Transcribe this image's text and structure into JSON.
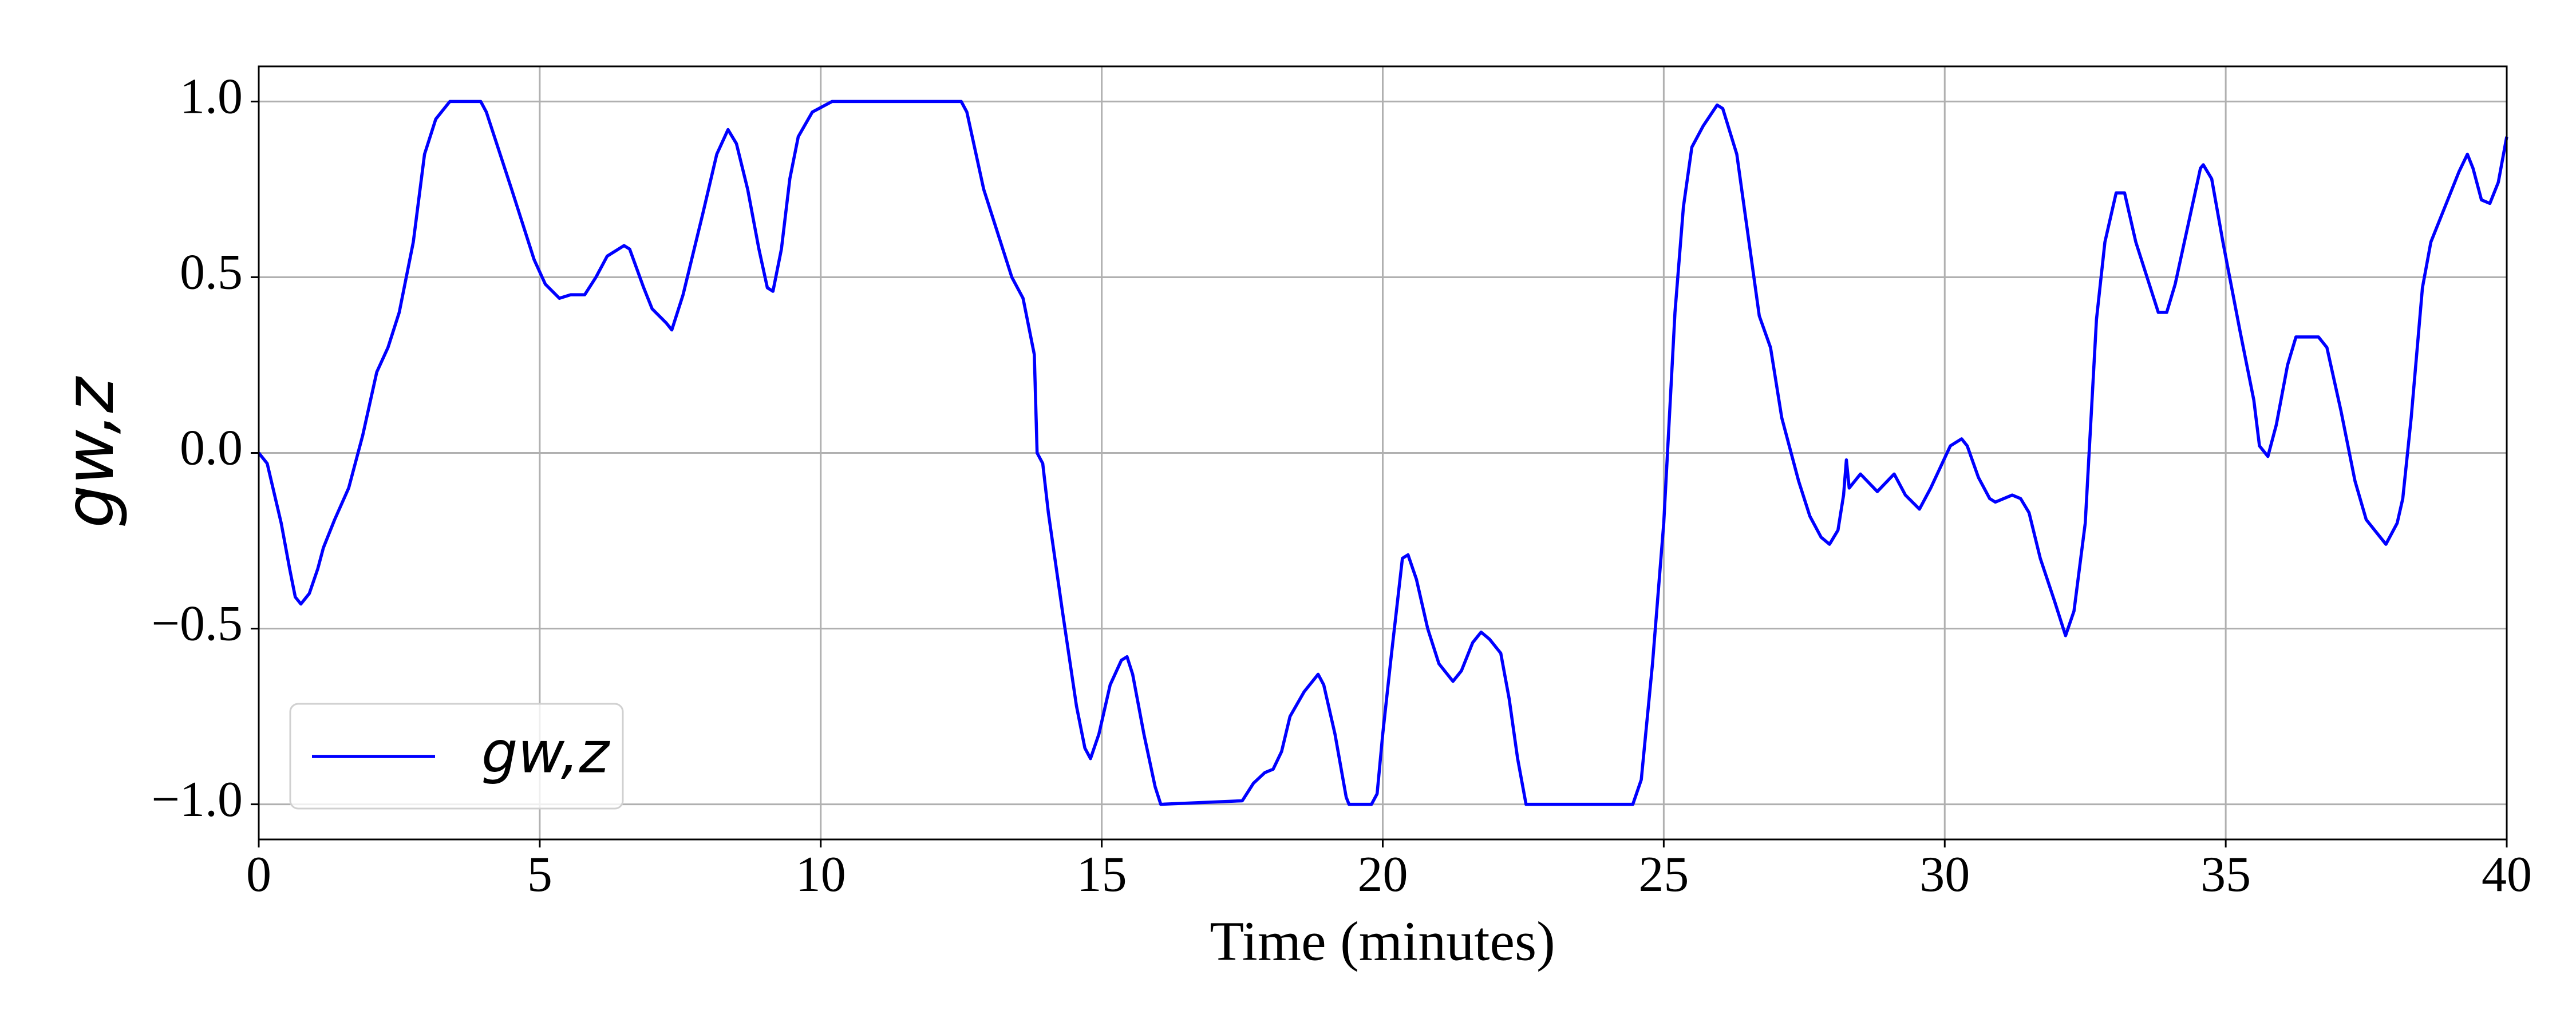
{
  "chart_data": {
    "type": "line",
    "x_label": "Time (minutes)",
    "y_label": "gw,z",
    "xlim": [
      0,
      40
    ],
    "ylim": [
      -1.1,
      1.1
    ],
    "xticks": [
      0,
      5,
      10,
      15,
      20,
      25,
      30,
      35,
      40
    ],
    "yticks": [
      {
        "value": -1.0,
        "label": "−1.0"
      },
      {
        "value": -0.5,
        "label": "−0.5"
      },
      {
        "value": 0.0,
        "label": "0.0"
      },
      0.5,
      {
        "value": 1.0,
        "label": "1.0"
      }
    ],
    "grid": true,
    "legend": "lower left",
    "x": [
      0,
      0.15,
      0.4,
      0.55,
      0.65,
      0.75,
      0.9,
      1.05,
      1.15,
      1.35,
      1.6,
      1.85,
      2.1,
      2.3,
      2.5,
      2.75,
      2.95,
      3.15,
      3.4,
      3.95,
      4.05,
      4.5,
      4.9,
      5.1,
      5.35,
      5.55,
      5.8,
      6.0,
      6.2,
      6.5,
      6.6,
      6.85,
      7.0,
      7.25,
      7.35,
      7.55,
      7.9,
      8.15,
      8.35,
      8.5,
      8.7,
      8.9,
      9.05,
      9.15,
      9.3,
      9.45,
      9.6,
      9.85,
      10.2,
      12.5,
      12.6,
      12.9,
      13.2,
      13.4,
      13.6,
      13.8,
      13.85,
      13.95,
      14.05,
      14.3,
      14.55,
      14.7,
      14.8,
      14.95,
      15.15,
      15.35,
      15.45,
      15.55,
      15.75,
      15.95,
      16.05,
      17.5,
      17.7,
      17.9,
      18.05,
      18.2,
      18.35,
      18.6,
      18.85,
      18.95,
      19.15,
      19.35,
      19.4,
      19.8,
      19.9,
      20.0,
      20.15,
      20.35,
      20.45,
      20.6,
      20.8,
      21.0,
      21.25,
      21.4,
      21.6,
      21.75,
      21.9,
      22.1,
      22.25,
      22.4,
      22.55,
      24.45,
      24.6,
      24.8,
      25.0,
      25.2,
      25.35,
      25.5,
      25.7,
      25.95,
      26.05,
      26.3,
      26.7,
      26.9,
      27.1,
      27.4,
      27.6,
      27.8,
      27.95,
      28.1,
      28.2,
      28.25,
      28.3,
      28.5,
      28.8,
      29.1,
      29.3,
      29.55,
      29.75,
      30.1,
      30.3,
      30.4,
      30.6,
      30.8,
      30.9,
      31.2,
      31.35,
      31.5,
      31.7,
      31.95,
      32.15,
      32.3,
      32.5,
      32.7,
      32.85,
      33.05,
      33.2,
      33.4,
      33.7,
      33.8,
      33.95,
      34.1,
      34.55,
      34.6,
      34.75,
      34.95,
      35.25,
      35.5,
      35.6,
      35.75,
      35.9,
      36.1,
      36.25,
      36.65,
      36.8,
      37.05,
      37.3,
      37.5,
      37.8,
      37.85,
      38.05,
      38.15,
      38.3,
      38.5,
      38.65,
      38.95,
      39.15,
      39.3,
      39.4,
      39.55,
      39.7,
      39.85,
      40
    ],
    "series": [
      {
        "name": "gw,z",
        "color": "#0000ff",
        "values": [
          0,
          -0.03,
          -0.2,
          -0.33,
          -0.41,
          -0.43,
          -0.4,
          -0.33,
          -0.27,
          -0.19,
          -0.1,
          0.05,
          0.23,
          0.3,
          0.4,
          0.6,
          0.85,
          0.95,
          1.0,
          1.0,
          0.97,
          0.75,
          0.55,
          0.48,
          0.44,
          0.45,
          0.45,
          0.5,
          0.56,
          0.59,
          0.58,
          0.47,
          0.41,
          0.37,
          0.35,
          0.45,
          0.68,
          0.85,
          0.92,
          0.88,
          0.75,
          0.58,
          0.47,
          0.46,
          0.58,
          0.78,
          0.9,
          0.97,
          1.0,
          1.0,
          0.97,
          0.75,
          0.6,
          0.5,
          0.44,
          0.28,
          0.0,
          -0.03,
          -0.17,
          -0.45,
          -0.72,
          -0.84,
          -0.87,
          -0.8,
          -0.66,
          -0.59,
          -0.58,
          -0.63,
          -0.8,
          -0.95,
          -1.0,
          -0.99,
          -0.94,
          -0.91,
          -0.9,
          -0.85,
          -0.75,
          -0.68,
          -0.63,
          -0.66,
          -0.8,
          -0.98,
          -1.0,
          -1.0,
          -0.97,
          -0.8,
          -0.58,
          -0.3,
          -0.29,
          -0.36,
          -0.5,
          -0.6,
          -0.65,
          -0.62,
          -0.54,
          -0.51,
          -0.53,
          -0.57,
          -0.7,
          -0.87,
          -1.0,
          -1.0,
          -0.93,
          -0.6,
          -0.2,
          0.4,
          0.7,
          0.87,
          0.93,
          0.99,
          0.98,
          0.85,
          0.39,
          0.3,
          0.1,
          -0.08,
          -0.18,
          -0.24,
          -0.26,
          -0.22,
          -0.12,
          -0.02,
          -0.1,
          -0.06,
          -0.11,
          -0.06,
          -0.12,
          -0.16,
          -0.1,
          0.02,
          0.04,
          0.02,
          -0.07,
          -0.13,
          -0.14,
          -0.12,
          -0.13,
          -0.17,
          -0.3,
          -0.42,
          -0.52,
          -0.45,
          -0.2,
          0.38,
          0.6,
          0.74,
          0.74,
          0.6,
          0.45,
          0.4,
          0.4,
          0.48,
          0.81,
          0.82,
          0.78,
          0.6,
          0.35,
          0.15,
          0.02,
          -0.01,
          0.08,
          0.25,
          0.33,
          0.33,
          0.3,
          0.12,
          -0.08,
          -0.19,
          -0.25,
          -0.26,
          -0.2,
          -0.13,
          0.1,
          0.47,
          0.6,
          0.72,
          0.8,
          0.85,
          0.81,
          0.72,
          0.71,
          0.77,
          0.9
        ]
      }
    ]
  }
}
